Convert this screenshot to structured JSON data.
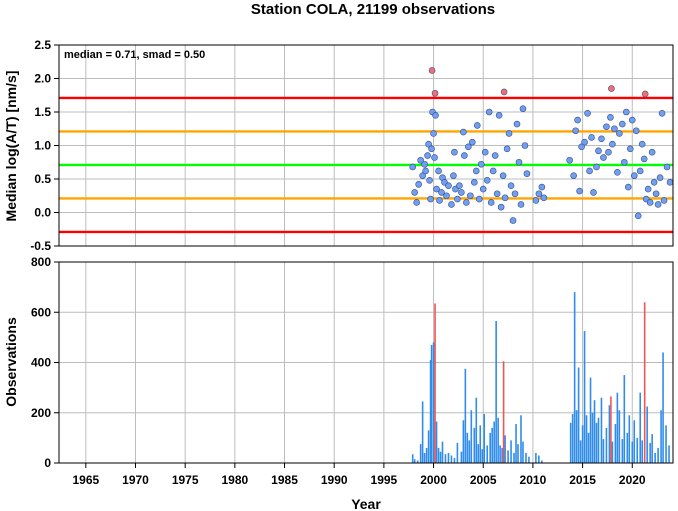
{
  "chart_data": {
    "title": "Station COLA, 21199 observations",
    "xlabel": "Year",
    "xlim": [
      1962.3,
      2024.1
    ],
    "x_ticks": [
      "1965",
      "1970",
      "1975",
      "1980",
      "1985",
      "1990",
      "1995",
      "2000",
      "2005",
      "2010",
      "2015",
      "2020"
    ],
    "grid": true,
    "panels": [
      {
        "type": "scatter",
        "ylabel": "Median log(A/T) [nm/s]",
        "ylim": [
          -0.5,
          2.5
        ],
        "y_ticks": [
          "-0.5",
          "0.0",
          "0.5",
          "1.0",
          "1.5",
          "2.0",
          "2.5"
        ],
        "annotation": "median = 0.71, smad = 0.50",
        "reference_lines": [
          {
            "y": 1.71,
            "color": "#ff0000"
          },
          {
            "y": 1.21,
            "color": "#ffa500"
          },
          {
            "y": 0.71,
            "color": "#00ff00"
          },
          {
            "y": 0.21,
            "color": "#ffa500"
          },
          {
            "y": -0.29,
            "color": "#ff0000"
          }
        ],
        "series": [
          {
            "color": "#6e9ff0",
            "points": [
              [
                1997.9,
                0.68
              ],
              [
                1998.1,
                0.3
              ],
              [
                1998.3,
                0.15
              ],
              [
                1998.5,
                0.42
              ],
              [
                1998.7,
                0.78
              ],
              [
                1998.9,
                0.55
              ],
              [
                1999.1,
                0.72
              ],
              [
                1999.2,
                0.62
              ],
              [
                1999.4,
                0.85
              ],
              [
                1999.5,
                1.02
              ],
              [
                1999.6,
                0.48
              ],
              [
                1999.7,
                0.2
              ],
              [
                1999.8,
                0.95
              ],
              [
                1999.9,
                1.5
              ],
              [
                2000.0,
                1.18
              ],
              [
                2000.1,
                0.82
              ],
              [
                2000.2,
                1.45
              ],
              [
                2000.3,
                0.35
              ],
              [
                2000.5,
                0.62
              ],
              [
                2000.6,
                0.18
              ],
              [
                2000.8,
                0.3
              ],
              [
                2000.9,
                0.52
              ],
              [
                2001.1,
                0.45
              ],
              [
                2001.3,
                0.25
              ],
              [
                2001.5,
                0.4
              ],
              [
                2001.8,
                0.12
              ],
              [
                2002.0,
                0.55
              ],
              [
                2002.1,
                0.9
              ],
              [
                2002.2,
                0.35
              ],
              [
                2002.4,
                0.2
              ],
              [
                2002.6,
                0.4
              ],
              [
                2002.8,
                0.3
              ],
              [
                2003.0,
                1.2
              ],
              [
                2003.1,
                0.85
              ],
              [
                2003.3,
                0.15
              ],
              [
                2003.5,
                0.98
              ],
              [
                2003.7,
                0.25
              ],
              [
                2003.9,
                1.05
              ],
              [
                2004.1,
                0.45
              ],
              [
                2004.3,
                0.62
              ],
              [
                2004.4,
                1.3
              ],
              [
                2004.6,
                0.2
              ],
              [
                2004.8,
                0.72
              ],
              [
                2005.0,
                0.35
              ],
              [
                2005.2,
                0.9
              ],
              [
                2005.4,
                0.48
              ],
              [
                2005.6,
                1.5
              ],
              [
                2005.8,
                0.15
              ],
              [
                2006.0,
                0.62
              ],
              [
                2006.2,
                0.85
              ],
              [
                2006.4,
                0.28
              ],
              [
                2006.6,
                1.45
              ],
              [
                2006.8,
                0.08
              ],
              [
                2007.0,
                0.55
              ],
              [
                2007.2,
                0.22
              ],
              [
                2007.4,
                0.95
              ],
              [
                2007.6,
                1.18
              ],
              [
                2007.8,
                0.4
              ],
              [
                2008.0,
                -0.12
              ],
              [
                2008.2,
                0.28
              ],
              [
                2008.4,
                1.32
              ],
              [
                2008.6,
                0.75
              ],
              [
                2008.8,
                0.12
              ],
              [
                2009.0,
                1.55
              ],
              [
                2009.2,
                1.0
              ],
              [
                2009.4,
                0.58
              ],
              [
                2010.3,
                0.18
              ],
              [
                2010.6,
                0.28
              ],
              [
                2010.9,
                0.38
              ],
              [
                2011.1,
                0.22
              ],
              [
                2013.7,
                0.78
              ],
              [
                2014.1,
                0.55
              ],
              [
                2014.3,
                1.22
              ],
              [
                2014.5,
                1.38
              ],
              [
                2014.7,
                0.32
              ],
              [
                2014.9,
                0.98
              ],
              [
                2015.2,
                1.05
              ],
              [
                2015.5,
                1.48
              ],
              [
                2015.7,
                0.62
              ],
              [
                2015.9,
                1.12
              ],
              [
                2016.1,
                0.3
              ],
              [
                2016.4,
                0.68
              ],
              [
                2016.6,
                0.92
              ],
              [
                2016.9,
                1.1
              ],
              [
                2017.1,
                0.82
              ],
              [
                2017.4,
                1.28
              ],
              [
                2017.6,
                0.9
              ],
              [
                2017.8,
                1.42
              ],
              [
                2018.0,
                1.02
              ],
              [
                2018.2,
                1.25
              ],
              [
                2018.5,
                0.6
              ],
              [
                2018.7,
                1.18
              ],
              [
                2019.0,
                1.32
              ],
              [
                2019.2,
                0.75
              ],
              [
                2019.4,
                1.5
              ],
              [
                2019.6,
                0.38
              ],
              [
                2019.8,
                0.95
              ],
              [
                2020.0,
                1.38
              ],
              [
                2020.2,
                0.55
              ],
              [
                2020.4,
                1.22
              ],
              [
                2020.6,
                -0.05
              ],
              [
                2020.8,
                0.62
              ],
              [
                2021.0,
                1.02
              ],
              [
                2021.2,
                0.8
              ],
              [
                2021.4,
                0.2
              ],
              [
                2021.6,
                0.35
              ],
              [
                2021.8,
                0.15
              ],
              [
                2022.0,
                0.9
              ],
              [
                2022.2,
                0.45
              ],
              [
                2022.4,
                0.28
              ],
              [
                2022.6,
                0.12
              ],
              [
                2022.8,
                0.52
              ],
              [
                2023.0,
                1.48
              ],
              [
                2023.2,
                0.18
              ],
              [
                2023.5,
                0.68
              ],
              [
                2023.8,
                0.45
              ]
            ]
          },
          {
            "color": "#f07070",
            "points": [
              [
                1999.85,
                2.12
              ],
              [
                2000.15,
                1.78
              ],
              [
                2007.1,
                1.8
              ],
              [
                2017.9,
                1.85
              ],
              [
                2021.3,
                1.77
              ]
            ]
          }
        ]
      },
      {
        "type": "bar",
        "ylabel": "Observations",
        "ylim": [
          0,
          800
        ],
        "y_ticks": [
          "0",
          "200",
          "400",
          "600",
          "800"
        ],
        "series": [
          {
            "color": "#2f8ceb",
            "bars": [
              [
                1997.9,
                35
              ],
              [
                1998.1,
                15
              ],
              [
                1998.4,
                10
              ],
              [
                1998.7,
                75
              ],
              [
                1998.9,
                245
              ],
              [
                1999.1,
                40
              ],
              [
                1999.3,
                60
              ],
              [
                1999.5,
                130
              ],
              [
                1999.7,
                410
              ],
              [
                1999.8,
                470
              ],
              [
                2000.0,
                480
              ],
              [
                2000.3,
                165
              ],
              [
                2000.5,
                60
              ],
              [
                2000.7,
                45
              ],
              [
                2000.9,
                85
              ],
              [
                2001.2,
                35
              ],
              [
                2001.5,
                40
              ],
              [
                2001.8,
                30
              ],
              [
                2002.1,
                20
              ],
              [
                2002.4,
                80
              ],
              [
                2002.8,
                45
              ],
              [
                2003.0,
                170
              ],
              [
                2003.2,
                375
              ],
              [
                2003.4,
                120
              ],
              [
                2003.6,
                90
              ],
              [
                2003.8,
                210
              ],
              [
                2004.1,
                140
              ],
              [
                2004.3,
                260
              ],
              [
                2004.5,
                75
              ],
              [
                2004.7,
                150
              ],
              [
                2004.9,
                55
              ],
              [
                2005.1,
                195
              ],
              [
                2005.4,
                70
              ],
              [
                2005.7,
                120
              ],
              [
                2005.9,
                140
              ],
              [
                2006.1,
                165
              ],
              [
                2006.3,
                565
              ],
              [
                2006.5,
                180
              ],
              [
                2006.7,
                70
              ],
              [
                2006.9,
                60
              ],
              [
                2007.2,
                110
              ],
              [
                2007.5,
                50
              ],
              [
                2007.8,
                90
              ],
              [
                2008.1,
                40
              ],
              [
                2008.3,
                155
              ],
              [
                2008.5,
                75
              ],
              [
                2008.8,
                190
              ],
              [
                2009.0,
                85
              ],
              [
                2009.3,
                40
              ],
              [
                2009.6,
                25
              ],
              [
                2010.3,
                40
              ],
              [
                2010.6,
                30
              ],
              [
                2010.9,
                10
              ],
              [
                2013.8,
                160
              ],
              [
                2014.0,
                195
              ],
              [
                2014.2,
                680
              ],
              [
                2014.4,
                210
              ],
              [
                2014.6,
                380
              ],
              [
                2014.8,
                90
              ],
              [
                2015.0,
                150
              ],
              [
                2015.2,
                525
              ],
              [
                2015.4,
                190
              ],
              [
                2015.6,
                120
              ],
              [
                2015.8,
                340
              ],
              [
                2016.0,
                200
              ],
              [
                2016.2,
                250
              ],
              [
                2016.4,
                160
              ],
              [
                2016.6,
                180
              ],
              [
                2016.9,
                260
              ],
              [
                2017.1,
                95
              ],
              [
                2017.4,
                140
              ],
              [
                2017.7,
                230
              ],
              [
                2018.0,
                85
              ],
              [
                2018.3,
                155
              ],
              [
                2018.5,
                280
              ],
              [
                2018.7,
                210
              ],
              [
                2019.0,
                95
              ],
              [
                2019.2,
                350
              ],
              [
                2019.5,
                120
              ],
              [
                2019.7,
                190
              ],
              [
                2020.0,
                85
              ],
              [
                2020.2,
                170
              ],
              [
                2020.5,
                100
              ],
              [
                2020.8,
                280
              ],
              [
                2021.0,
                90
              ],
              [
                2021.5,
                225
              ],
              [
                2021.8,
                80
              ],
              [
                2022.0,
                115
              ],
              [
                2022.3,
                40
              ],
              [
                2022.6,
                60
              ],
              [
                2022.9,
                210
              ],
              [
                2023.1,
                440
              ],
              [
                2023.4,
                150
              ],
              [
                2023.7,
                70
              ]
            ]
          },
          {
            "color": "#f05555",
            "bars": [
              [
                2000.15,
                635
              ],
              [
                2007.05,
                405
              ],
              [
                2017.85,
                265
              ],
              [
                2021.25,
                640
              ]
            ]
          }
        ]
      }
    ]
  }
}
